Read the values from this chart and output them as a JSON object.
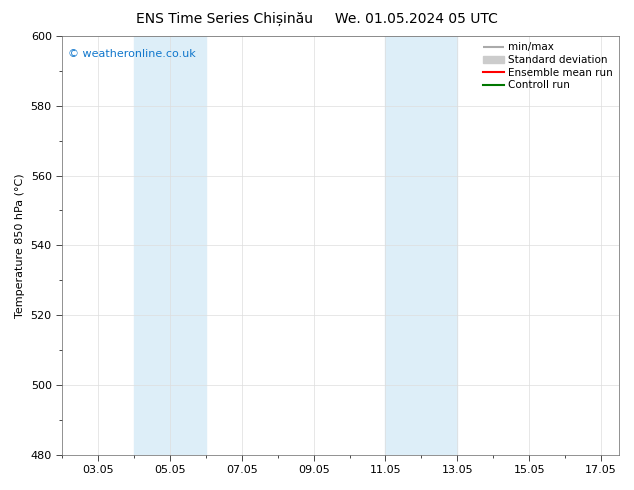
{
  "title_left": "ENS Time Series Chișinău",
  "title_right": "We. 01.05.2024 05 UTC",
  "ylabel": "Temperature 850 hPa (°C)",
  "watermark": "© weatheronline.co.uk",
  "ylim": [
    480,
    600
  ],
  "yticks": [
    480,
    500,
    520,
    540,
    560,
    580,
    600
  ],
  "xlim": [
    2.0,
    17.5
  ],
  "xtick_labels": [
    "03.05",
    "05.05",
    "07.05",
    "09.05",
    "11.05",
    "13.05",
    "15.05",
    "17.05"
  ],
  "xtick_positions": [
    3,
    5,
    7,
    9,
    11,
    13,
    15,
    17
  ],
  "shaded_bands": [
    {
      "x_start": 4.0,
      "x_end": 6.0,
      "color": "#ddeef8"
    },
    {
      "x_start": 11.0,
      "x_end": 13.0,
      "color": "#ddeef8"
    }
  ],
  "legend_entries": [
    {
      "label": "min/max",
      "color": "#aaaaaa",
      "lw": 1.5
    },
    {
      "label": "Standard deviation",
      "color": "#cccccc",
      "lw": 8
    },
    {
      "label": "Ensemble mean run",
      "color": "#ff0000",
      "lw": 1.5
    },
    {
      "label": "Controll run",
      "color": "#007700",
      "lw": 1.5
    }
  ],
  "background_color": "#ffffff",
  "plot_bg_color": "#ffffff",
  "grid_color": "#dddddd",
  "title_fontsize": 10,
  "axis_fontsize": 8,
  "watermark_color": "#1177cc",
  "watermark_fontsize": 8
}
